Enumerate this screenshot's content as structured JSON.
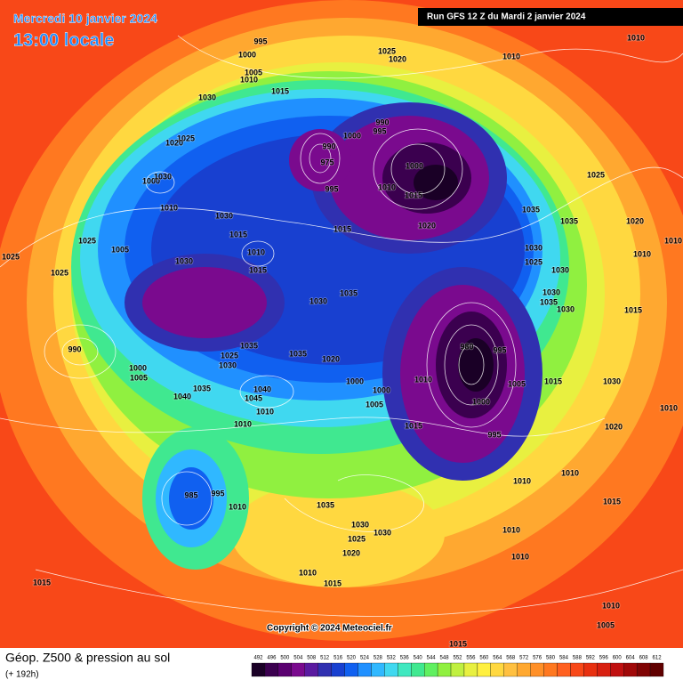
{
  "header": {
    "date": "Mercredi 10 janvier 2024",
    "time": "13:00 locale",
    "run": "Run GFS 12 Z du Mardi 2 janvier 2024"
  },
  "footer": {
    "title": "Géop. Z500 & pression au sol",
    "lead": "(+ 192h)",
    "copyright": "Copyright © 2024 Meteociel.fr"
  },
  "colorbar": {
    "ticks": [
      492,
      496,
      500,
      504,
      508,
      512,
      516,
      520,
      524,
      528,
      532,
      536,
      540,
      544,
      548,
      552,
      556,
      560,
      564,
      568,
      572,
      576,
      580,
      584,
      588,
      592,
      596,
      600,
      604,
      608,
      612
    ],
    "colors": [
      "#1a0026",
      "#3b004f",
      "#5a0070",
      "#7a0a8e",
      "#5a1aa0",
      "#3030b0",
      "#1840d0",
      "#1060f0",
      "#2090ff",
      "#30b8ff",
      "#40d8f0",
      "#40e8c0",
      "#40e890",
      "#60f060",
      "#90f040",
      "#c0f040",
      "#e8f040",
      "#fff040",
      "#ffd840",
      "#ffc040",
      "#ffa830",
      "#ff9028",
      "#ff7820",
      "#ff6020",
      "#f84818",
      "#e83010",
      "#d82010",
      "#c01010",
      "#a00808",
      "#800404",
      "#600000"
    ]
  },
  "isobar_labels": [
    995,
    1000,
    1005,
    1010,
    1015,
    1025,
    1020,
    1010,
    1010,
    1030,
    1025,
    1020,
    1000,
    1030,
    1010,
    990,
    995,
    1000,
    990,
    975,
    995,
    1000,
    1010,
    1015,
    1020,
    1015,
    1030,
    1015,
    1010,
    1015,
    1030,
    1005,
    1025,
    1025,
    1025,
    1035,
    1030,
    990,
    1000,
    1005,
    1040,
    1035,
    1025,
    1030,
    1035,
    1035,
    1020,
    1040,
    1045,
    1010,
    1010,
    1000,
    1000,
    1005,
    1010,
    1015,
    980,
    995,
    1000,
    995,
    1005,
    1015,
    1010,
    1010,
    1035,
    1035,
    1030,
    1025,
    1030,
    1030,
    1035,
    1030,
    1025,
    1020,
    1010,
    1015,
    1030,
    1020,
    1015,
    1010,
    1005,
    1015,
    1015,
    985,
    995,
    1010,
    1035,
    1030,
    1025,
    1030,
    1020,
    1010,
    1015,
    1010,
    1010,
    1010,
    1010
  ]
}
